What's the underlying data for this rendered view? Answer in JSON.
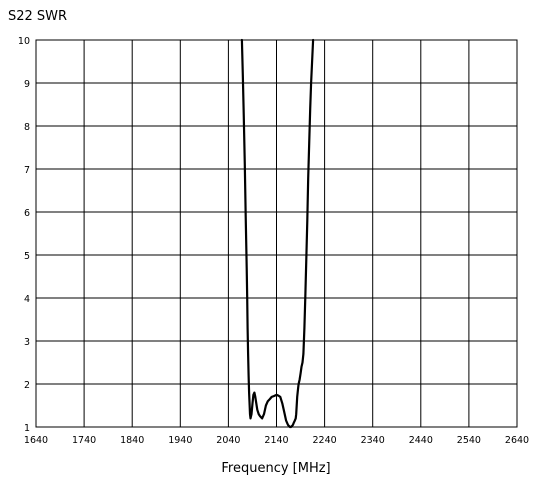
{
  "chart_data": {
    "type": "line",
    "title": "S22 SWR",
    "xlabel": "Frequency [MHz]",
    "ylabel": "",
    "xlim": [
      1640,
      2640
    ],
    "ylim": [
      1,
      10
    ],
    "grid": true,
    "x_ticks": [
      1640,
      1740,
      1840,
      1940,
      2040,
      2140,
      2240,
      2340,
      2440,
      2540,
      2640
    ],
    "y_ticks": [
      1,
      2,
      3,
      4,
      5,
      6,
      7,
      8,
      9,
      10
    ],
    "line_color": "#000000",
    "grid_color": "#000000",
    "series": [
      {
        "x": [
          2068,
          2070,
          2072,
          2074,
          2076,
          2078,
          2079,
          2080,
          2081,
          2082,
          2083,
          2085,
          2086,
          2088,
          2090,
          2092,
          2094,
          2096,
          2098,
          2100,
          2103,
          2106,
          2110,
          2114,
          2118,
          2122,
          2126,
          2130,
          2135,
          2140,
          2144,
          2148,
          2152,
          2156,
          2160,
          2164,
          2166,
          2168,
          2170,
          2172,
          2174,
          2176,
          2178,
          2180,
          2181,
          2182,
          2183,
          2185,
          2186,
          2188,
          2190,
          2192,
          2194,
          2196,
          2198,
          2200,
          2202,
          2204,
          2206,
          2208,
          2210,
          2212,
          2214,
          2216
        ],
        "y": [
          10,
          9.2,
          8.2,
          7.1,
          5.9,
          4.7,
          4.0,
          3.3,
          2.7,
          2.2,
          1.8,
          1.3,
          1.2,
          1.3,
          1.55,
          1.75,
          1.8,
          1.7,
          1.55,
          1.4,
          1.3,
          1.25,
          1.2,
          1.3,
          1.5,
          1.6,
          1.65,
          1.7,
          1.72,
          1.75,
          1.73,
          1.7,
          1.55,
          1.35,
          1.15,
          1.05,
          1.02,
          1.0,
          1.0,
          1.02,
          1.05,
          1.1,
          1.15,
          1.2,
          1.3,
          1.5,
          1.7,
          1.9,
          2.0,
          2.1,
          2.25,
          2.4,
          2.5,
          2.7,
          3.3,
          4.1,
          4.9,
          5.8,
          6.8,
          7.6,
          8.4,
          9.0,
          9.5,
          10
        ]
      }
    ]
  }
}
